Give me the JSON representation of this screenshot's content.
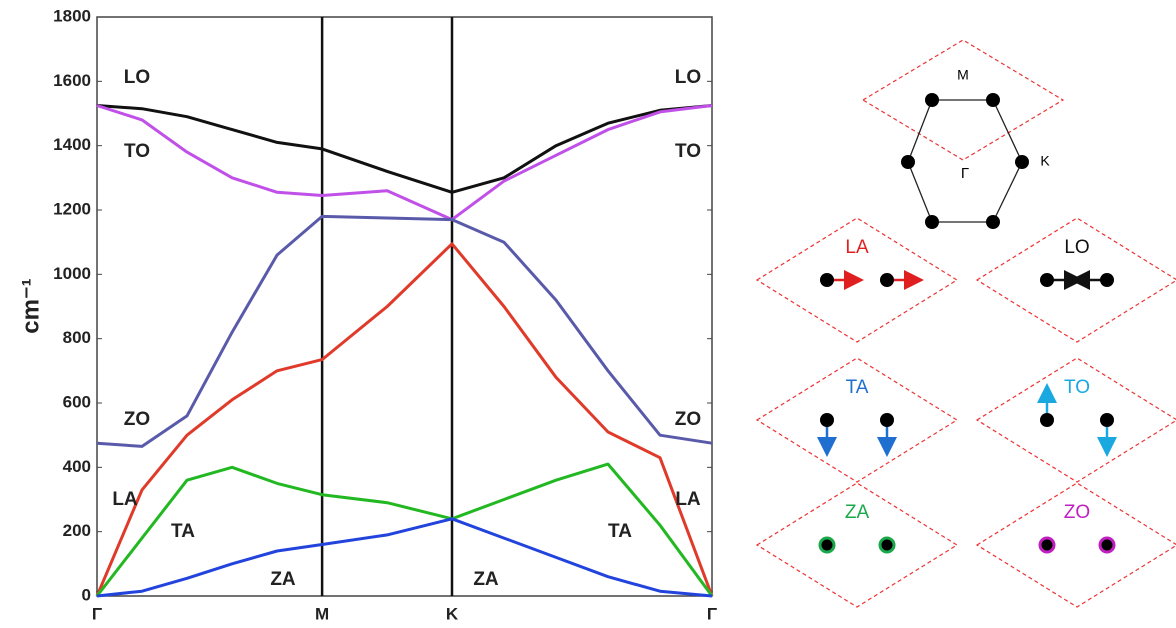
{
  "chart_data": {
    "type": "line",
    "ylabel": "cm⁻¹",
    "x": [
      0,
      0.2,
      0.4,
      0.6,
      0.8,
      1,
      1.289,
      1.577,
      1.808,
      2.039,
      2.27,
      2.501,
      2.732
    ],
    "xlim": [
      0,
      2.732
    ],
    "xticks": [
      {
        "value": 0,
        "label": "Γ"
      },
      {
        "value": 1,
        "label": "M"
      },
      {
        "value": 1.577,
        "label": "K"
      },
      {
        "value": 2.732,
        "label": "Γ"
      }
    ],
    "ylim": [
      0,
      1800
    ],
    "yticks": [
      0,
      200,
      400,
      600,
      800,
      1000,
      1200,
      1400,
      1600,
      1800
    ],
    "grid": false,
    "series": [
      {
        "name": "LO",
        "color": "#111111",
        "values": [
          1525,
          1515,
          1490,
          1450,
          1410,
          1390,
          1320,
          1255,
          1300,
          1400,
          1470,
          1510,
          1525
        ]
      },
      {
        "name": "TO",
        "color": "#c050e8",
        "values": [
          1525,
          1480,
          1380,
          1300,
          1255,
          1245,
          1260,
          1170,
          1290,
          1370,
          1450,
          1505,
          1525
        ]
      },
      {
        "name": "ZO",
        "color": "#5a5aaa",
        "values": [
          475,
          465,
          560,
          820,
          1060,
          1180,
          1175,
          1170,
          1100,
          920,
          700,
          500,
          475
        ]
      },
      {
        "name": "LA",
        "color": "#e03a2a",
        "values": [
          0,
          330,
          500,
          610,
          700,
          735,
          900,
          1095,
          900,
          680,
          510,
          430,
          0
        ]
      },
      {
        "name": "TA",
        "color": "#22b822",
        "values": [
          0,
          180,
          360,
          400,
          350,
          315,
          290,
          240,
          300,
          360,
          410,
          220,
          0
        ]
      },
      {
        "name": "ZA",
        "color": "#2244dd",
        "values": [
          0,
          15,
          55,
          100,
          140,
          160,
          190,
          240,
          180,
          120,
          60,
          15,
          0
        ]
      }
    ]
  },
  "diagram": {
    "bz_labels": [
      "M",
      "Γ",
      "K"
    ],
    "modes": [
      {
        "label": "LA",
        "color": "#e02020"
      },
      {
        "label": "LO",
        "color": "#111111"
      },
      {
        "label": "TA",
        "color": "#1f6fd0"
      },
      {
        "label": "TO",
        "color": "#19a8e0"
      },
      {
        "label": "ZA",
        "color": "#1aa84a"
      },
      {
        "label": "ZO",
        "color": "#c020c0"
      }
    ]
  }
}
